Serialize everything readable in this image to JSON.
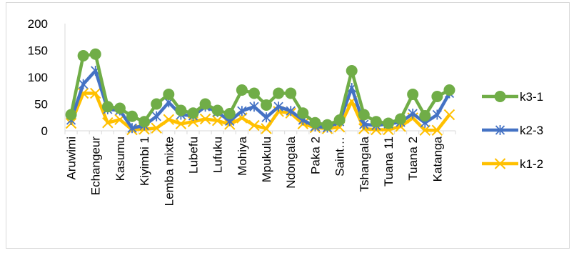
{
  "chart_data": {
    "type": "line",
    "categories": [
      "Aruwimi",
      "",
      "Echangeur",
      "",
      "Kasumu",
      "",
      "Kiyimbi 1",
      "",
      "Lemba mixte",
      "",
      "Lubefu",
      "",
      "Lufuku",
      "",
      "Mohiya",
      "",
      "Mpukulu",
      "",
      "Ndongala",
      "",
      "Paka 2",
      "",
      "Saint…",
      "",
      "Tshangala",
      "",
      "Tuana 11",
      "",
      "Tuana 2",
      "",
      "Katanga",
      ""
    ],
    "ylim": [
      0,
      200
    ],
    "yticks": [
      "0",
      "50",
      "100",
      "150",
      "200"
    ],
    "grid": false,
    "legend_position": "right",
    "series": [
      {
        "name": "k3-1",
        "color": "#70ad47",
        "marker": "circle",
        "values": [
          30,
          140,
          143,
          45,
          42,
          27,
          17,
          50,
          68,
          38,
          33,
          50,
          38,
          32,
          76,
          70,
          48,
          70,
          70,
          33,
          15,
          11,
          20,
          112,
          30,
          17,
          14,
          22,
          68,
          28,
          64,
          76
        ]
      },
      {
        "name": "k2-3",
        "color": "#4472c4",
        "marker": "star",
        "values": [
          20,
          87,
          112,
          40,
          38,
          5,
          10,
          27,
          53,
          30,
          28,
          45,
          35,
          18,
          37,
          45,
          25,
          45,
          37,
          20,
          8,
          6,
          17,
          80,
          12,
          10,
          13,
          16,
          32,
          15,
          30,
          70
        ]
      },
      {
        "name": "k1-2",
        "color": "#ffc000",
        "marker": "x",
        "values": [
          14,
          70,
          70,
          15,
          21,
          2,
          3,
          5,
          21,
          13,
          17,
          22,
          19,
          12,
          24,
          10,
          4,
          36,
          33,
          13,
          6,
          4,
          7,
          55,
          4,
          2,
          2,
          8,
          24,
          1,
          1,
          30
        ]
      }
    ]
  }
}
